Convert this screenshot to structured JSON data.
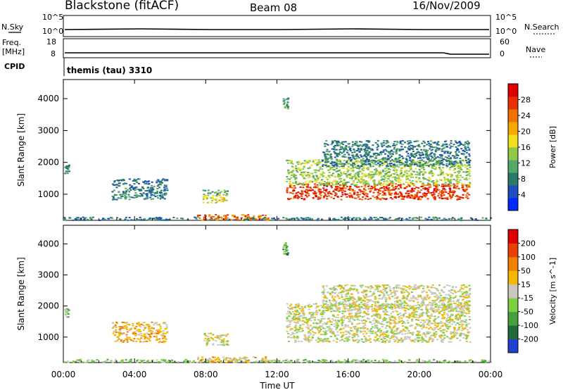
{
  "header": {
    "station": "Blackstone (fitACF)",
    "beam": "Beam 08",
    "date": "16/Nov/2009"
  },
  "nsky_panel": {
    "label_left": "N.Sky",
    "label_right": "N.Search",
    "yticks_left": [
      "10^5",
      "10^0"
    ],
    "yticks_right": [
      "10^5",
      "10^0"
    ]
  },
  "freq_panel": {
    "label_left": "Freq.",
    "label_unit": "[MHz]",
    "label_right": "Nave",
    "yticks_left": [
      "18",
      "8"
    ],
    "yticks_right": [
      "60",
      "0"
    ]
  },
  "cpid": {
    "label": "CPID",
    "mode": "themis (tau) 3310"
  },
  "chart_data": [
    {
      "type": "heatmap",
      "name": "Power",
      "ylabel": "Slant Range [km]",
      "yticks": [
        "4000",
        "3000",
        "2000",
        "1000"
      ],
      "colorbar_label": "Power [dB]",
      "colorbar_ticks": [
        "28",
        "24",
        "20",
        "16",
        "12",
        "8",
        "4"
      ],
      "colors": [
        "#0028ff",
        "#1f4fbf",
        "#2a7a6a",
        "#56a86a",
        "#8fc84a",
        "#f0e020",
        "#f5a800",
        "#f07000",
        "#e83000",
        "#e00000"
      ],
      "ylim": [
        180,
        4600
      ],
      "xlim": [
        0,
        24
      ],
      "regions": [
        {
          "t": [
            0.05,
            0.3
          ],
          "r": [
            1650,
            1950
          ],
          "level": 2
        },
        {
          "t": [
            2.7,
            5.8
          ],
          "r": [
            850,
            1500
          ],
          "level": 2
        },
        {
          "t": [
            7.8,
            9.2
          ],
          "r": [
            750,
            1000
          ],
          "level": 5
        },
        {
          "t": [
            7.8,
            9.2
          ],
          "r": [
            1000,
            1150
          ],
          "level": 3
        },
        {
          "t": [
            12.3,
            12.6
          ],
          "r": [
            3650,
            4050
          ],
          "level": 3
        },
        {
          "t": [
            12.5,
            22.8
          ],
          "r": [
            850,
            1350
          ],
          "level": 8
        },
        {
          "t": [
            12.5,
            22.8
          ],
          "r": [
            1300,
            2100
          ],
          "level": 4
        },
        {
          "t": [
            14.5,
            22.8
          ],
          "r": [
            1900,
            2700
          ],
          "level": 2
        },
        {
          "t": [
            0.0,
            24.0
          ],
          "r": [
            200,
            300
          ],
          "level": 2
        },
        {
          "t": [
            7.5,
            11.5
          ],
          "r": [
            200,
            380
          ],
          "level": 7
        }
      ]
    },
    {
      "type": "heatmap",
      "name": "Velocity",
      "ylabel": "Slant Range [km]",
      "yticks": [
        "4000",
        "3000",
        "2000",
        "1000"
      ],
      "colorbar_label": "Velocity [m s^-1]",
      "colorbar_ticks": [
        "200",
        "100",
        "50",
        "15",
        "-15",
        "-50",
        "-100",
        "-200"
      ],
      "colors": [
        "#2040d0",
        "#1e6a3a",
        "#46a03c",
        "#7cd040",
        "#c8c8c0",
        "#f5b800",
        "#f08000",
        "#e84000",
        "#e00000"
      ],
      "ylim": [
        180,
        4600
      ],
      "xlim": [
        0,
        24
      ],
      "regions": [
        {
          "t": [
            0.05,
            0.3
          ],
          "r": [
            1650,
            1950
          ],
          "level": 3
        },
        {
          "t": [
            2.7,
            5.8
          ],
          "r": [
            850,
            1500
          ],
          "level": 5
        },
        {
          "t": [
            7.8,
            9.2
          ],
          "r": [
            750,
            1150
          ],
          "level": 4
        },
        {
          "t": [
            12.3,
            12.6
          ],
          "r": [
            3650,
            4050
          ],
          "level": 2
        },
        {
          "t": [
            12.5,
            22.8
          ],
          "r": [
            850,
            2100
          ],
          "level": 4
        },
        {
          "t": [
            14.5,
            22.8
          ],
          "r": [
            1900,
            2700
          ],
          "level": 4
        },
        {
          "t": [
            0.0,
            24.0
          ],
          "r": [
            200,
            300
          ],
          "level": 3
        },
        {
          "t": [
            7.5,
            11.5
          ],
          "r": [
            200,
            380
          ],
          "level": 5
        }
      ]
    }
  ],
  "xaxis": {
    "ticks": [
      "00:00",
      "04:00",
      "08:00",
      "12:00",
      "16:00",
      "20:00",
      "00:00"
    ],
    "label": "Time UT"
  }
}
